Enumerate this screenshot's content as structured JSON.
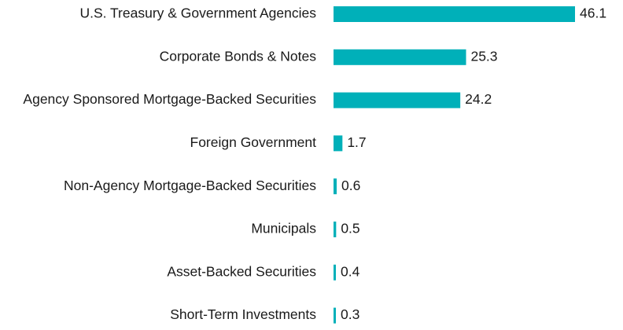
{
  "chart_data": {
    "type": "bar",
    "orientation": "horizontal",
    "title": "",
    "xlabel": "",
    "ylabel": "",
    "categories": [
      "U.S. Treasury & Government Agencies",
      "Corporate Bonds & Notes",
      "Agency Sponsored Mortgage-Backed Securities",
      "Foreign Government",
      "Non-Agency Mortgage-Backed Securities",
      "Municipals",
      "Asset-Backed Securities",
      "Short-Term Investments"
    ],
    "values": [
      46.1,
      25.3,
      24.2,
      1.7,
      0.6,
      0.5,
      0.4,
      0.3
    ],
    "value_labels": [
      "46.1",
      "25.3",
      "24.2",
      "1.7",
      "0.6",
      "0.5",
      "0.4",
      "0.3"
    ],
    "xlim": [
      0,
      46.1
    ],
    "grid": false,
    "legend": "none",
    "bar_color": "#00b0b9"
  }
}
